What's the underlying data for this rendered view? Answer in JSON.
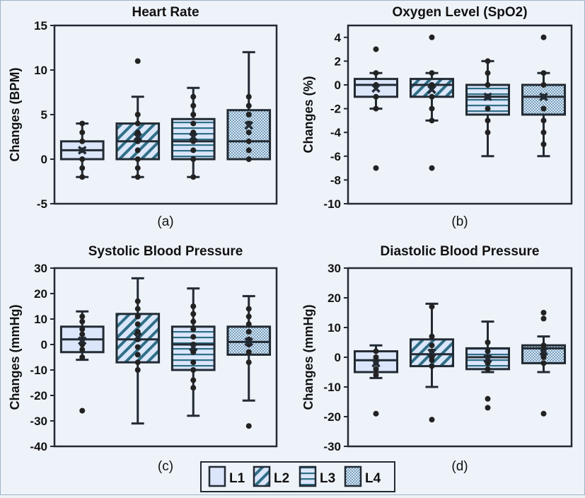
{
  "legend": [
    {
      "key": "L1",
      "label": "L1",
      "pattern": "solid"
    },
    {
      "key": "L2",
      "label": "L2",
      "pattern": "diagonal"
    },
    {
      "key": "L3",
      "label": "L3",
      "pattern": "horizontal"
    },
    {
      "key": "L4",
      "label": "L4",
      "pattern": "dotted"
    }
  ],
  "colors": {
    "box_fill": "#dbe6fb",
    "stroke": "#222a33",
    "hatch": "#2f6f86",
    "dot": "#222222",
    "background": "#eef3f9"
  },
  "chart_data": [
    {
      "type": "box",
      "title": "Heart Rate",
      "sublabel": "(a)",
      "ylabel": "Changes (BPM)",
      "ylim": [
        -5,
        15
      ],
      "yticks": [
        -5,
        0,
        5,
        10,
        15
      ],
      "categories": [
        "L1",
        "L2",
        "L3",
        "L4"
      ],
      "boxes": [
        {
          "name": "L1",
          "min": -2,
          "q1": 0,
          "median": 1,
          "q3": 2,
          "max": 4,
          "mean": 1,
          "points": [
            -2,
            -1,
            0,
            1,
            2,
            3,
            4
          ]
        },
        {
          "name": "L2",
          "min": -2,
          "q1": 0,
          "median": 2,
          "q3": 4,
          "max": 7,
          "mean": 2.5,
          "points": [
            -2,
            -1,
            0,
            1,
            2,
            3,
            4,
            5,
            11
          ]
        },
        {
          "name": "L3",
          "min": -2,
          "q1": 0,
          "median": 2,
          "q3": 4.5,
          "max": 8,
          "mean": 2.5,
          "points": [
            -2,
            0,
            1,
            2,
            3,
            4,
            5,
            6,
            7
          ]
        },
        {
          "name": "L4",
          "min": 0,
          "q1": 0,
          "median": 2,
          "q3": 5.5,
          "max": 12,
          "mean": 3.8,
          "points": [
            0,
            1,
            2,
            3,
            4,
            5,
            6,
            7
          ]
        }
      ]
    },
    {
      "type": "box",
      "title": "Oxygen Level (SpO2)",
      "sublabel": "(b)",
      "ylabel": "Changes (%)",
      "ylim": [
        -10,
        5
      ],
      "yticks": [
        -10,
        -8,
        -6,
        -4,
        -2,
        0,
        2,
        4
      ],
      "categories": [
        "L1",
        "L2",
        "L3",
        "L4"
      ],
      "boxes": [
        {
          "name": "L1",
          "min": -2,
          "q1": -1,
          "median": 0,
          "q3": 0.5,
          "max": 1,
          "mean": -0.3,
          "points": [
            -7,
            -2,
            -1,
            0,
            1,
            3
          ]
        },
        {
          "name": "L2",
          "min": -3,
          "q1": -1,
          "median": 0,
          "q3": 0.5,
          "max": 1,
          "mean": -0.4,
          "points": [
            -7,
            -3,
            -2,
            -1,
            0,
            1,
            4
          ]
        },
        {
          "name": "L3",
          "min": -6,
          "q1": -2.5,
          "median": -1,
          "q3": 0,
          "max": 2,
          "mean": -1,
          "points": [
            -4,
            -3,
            -2,
            -1,
            0,
            1,
            2
          ]
        },
        {
          "name": "L4",
          "min": -6,
          "q1": -2.5,
          "median": -1,
          "q3": 0,
          "max": 1,
          "mean": -1,
          "points": [
            -5,
            -4,
            -3,
            -2,
            -1,
            0,
            1,
            4
          ]
        }
      ]
    },
    {
      "type": "box",
      "title": "Systolic Blood Pressure",
      "sublabel": "(c)",
      "ylabel": "Changes (mmHg)",
      "ylim": [
        -40,
        30
      ],
      "yticks": [
        -40,
        -30,
        -20,
        -10,
        0,
        10,
        20,
        30
      ],
      "categories": [
        "L1",
        "L2",
        "L3",
        "L4"
      ],
      "boxes": [
        {
          "name": "L1",
          "min": -6,
          "q1": -3,
          "median": 2,
          "q3": 7,
          "max": 13,
          "mean": 1.5,
          "points": [
            -26,
            -5,
            -2,
            0,
            2,
            4,
            6,
            9,
            11
          ]
        },
        {
          "name": "L2",
          "min": -31,
          "q1": -7,
          "median": 2,
          "q3": 12,
          "max": 26,
          "mean": 3,
          "points": [
            -10,
            -7,
            -4,
            -1,
            2,
            5,
            8,
            11,
            14,
            17
          ]
        },
        {
          "name": "L3",
          "min": -28,
          "q1": -10,
          "median": 0,
          "q3": 7,
          "max": 22,
          "mean": -1,
          "points": [
            -17,
            -14,
            -10,
            -7,
            -3,
            0,
            3,
            6,
            9,
            12,
            15
          ]
        },
        {
          "name": "L4",
          "min": -22,
          "q1": -4,
          "median": 1,
          "q3": 7,
          "max": 19,
          "mean": 1,
          "points": [
            -32,
            -7,
            -3,
            0,
            2,
            5,
            8,
            11,
            14
          ]
        }
      ]
    },
    {
      "type": "box",
      "title": "Diastolic Blood Pressure",
      "sublabel": "(d)",
      "ylabel": "Changes (mmHg)",
      "ylim": [
        -30,
        30
      ],
      "yticks": [
        -30,
        -20,
        -10,
        0,
        10,
        20,
        30
      ],
      "categories": [
        "L1",
        "L2",
        "L3",
        "L4"
      ],
      "boxes": [
        {
          "name": "L1",
          "min": -7,
          "q1": -5,
          "median": -1,
          "q3": 2,
          "max": 4,
          "mean": -2,
          "points": [
            -19,
            -6,
            -4,
            -2,
            0,
            2
          ]
        },
        {
          "name": "L2",
          "min": -10,
          "q1": -3,
          "median": 1,
          "q3": 6,
          "max": 18,
          "mean": 1.5,
          "points": [
            -21,
            -3,
            -1,
            0,
            1,
            2,
            4,
            7,
            17
          ]
        },
        {
          "name": "L3",
          "min": -5,
          "q1": -4,
          "median": 0,
          "q3": 3,
          "max": 12,
          "mean": -0.5,
          "points": [
            -17,
            -14,
            -4,
            -2,
            0,
            2,
            5
          ]
        },
        {
          "name": "L4",
          "min": -5,
          "q1": -2,
          "median": 3,
          "q3": 4,
          "max": 7,
          "mean": 2,
          "points": [
            -19,
            -2,
            0,
            1,
            2,
            3,
            4,
            13,
            15
          ]
        }
      ]
    }
  ]
}
